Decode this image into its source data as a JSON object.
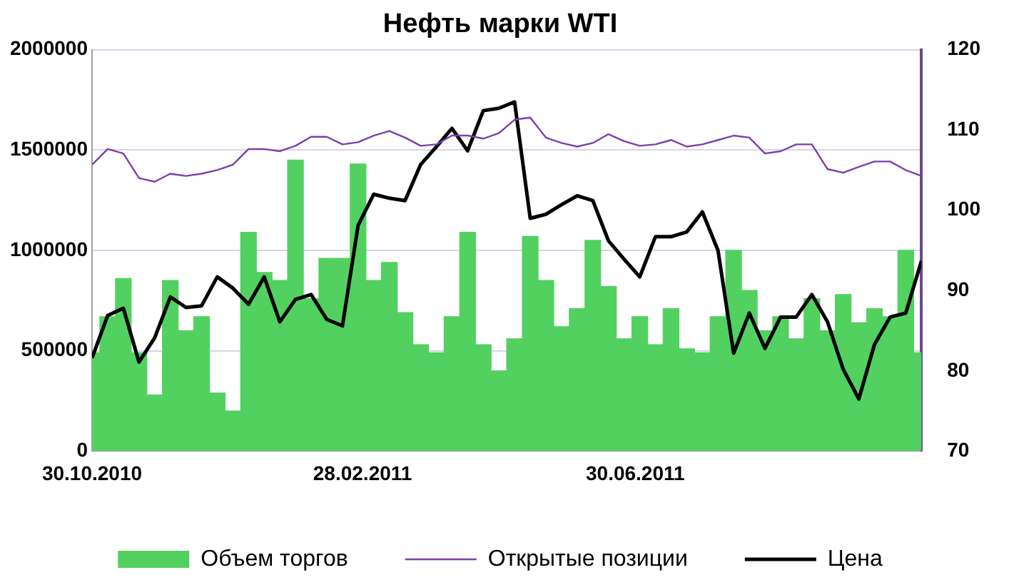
{
  "chart_data": {
    "type": "bar",
    "title": "Нефть марки WTI",
    "legend": "bottom",
    "grid": "y",
    "marker": "none",
    "x": [
      "2010-10-30",
      "2010-11-06",
      "2010-11-13",
      "2010-11-20",
      "2010-11-27",
      "2010-12-04",
      "2010-12-11",
      "2010-12-18",
      "2010-12-25",
      "2011-01-01",
      "2011-01-08",
      "2011-01-15",
      "2011-01-22",
      "2011-01-29",
      "2011-02-05",
      "2011-02-12",
      "2011-02-19",
      "2011-02-26",
      "2011-03-05",
      "2011-03-12",
      "2011-03-19",
      "2011-03-26",
      "2011-04-02",
      "2011-04-09",
      "2011-04-16",
      "2011-04-23",
      "2011-04-30",
      "2011-05-07",
      "2011-05-14",
      "2011-05-21",
      "2011-05-28",
      "2011-06-04",
      "2011-06-11",
      "2011-06-18",
      "2011-06-25",
      "2011-07-02",
      "2011-07-09",
      "2011-07-16",
      "2011-07-23",
      "2011-07-30",
      "2011-08-06",
      "2011-08-13",
      "2011-08-20",
      "2011-08-27",
      "2011-09-03",
      "2011-09-10",
      "2011-09-17",
      "2011-09-24",
      "2011-10-01",
      "2011-10-08",
      "2011-10-15",
      "2011-10-22",
      "2011-10-29",
      "2011-11-05"
    ],
    "xlim": [
      "2010-10-30",
      "2011-11-05"
    ],
    "xticks": [
      {
        "value": "2010-10-30",
        "label": "30.10.2010"
      },
      {
        "value": "2011-02-28",
        "label": "28.02.2011"
      },
      {
        "value": "2011-06-30",
        "label": "30.06.2011"
      }
    ],
    "ylim": [
      0,
      2000000
    ],
    "yticks": [
      0,
      500000,
      1000000,
      1500000,
      2000000
    ],
    "y2lim": [
      70,
      120
    ],
    "y2ticks": [
      70,
      80,
      90,
      100,
      110,
      120
    ],
    "series": [
      {
        "name": "Объем торгов",
        "color": "#52d160",
        "values": [
          490000,
          670000,
          860000,
          490000,
          280000,
          850000,
          600000,
          670000,
          290000,
          200000,
          1090000,
          890000,
          850000,
          1450000,
          760000,
          960000,
          960000,
          1430000,
          850000,
          940000,
          690000,
          530000,
          490000,
          670000,
          1090000,
          530000,
          400000,
          560000,
          1070000,
          850000,
          620000,
          710000,
          1050000,
          820000,
          560000,
          670000,
          530000,
          710000,
          510000,
          490000,
          670000,
          1000000,
          800000,
          600000,
          670000,
          560000,
          760000,
          600000,
          780000,
          640000,
          710000,
          670000,
          1000000,
          490000
        ]
      },
      {
        "name": "Открытые позиции",
        "type": "line",
        "color": "#7b3fb0",
        "values": [
          1427000,
          1505000,
          1483000,
          1360000,
          1342000,
          1382000,
          1371000,
          1382000,
          1400000,
          1427000,
          1505000,
          1505000,
          1494000,
          1521000,
          1566000,
          1566000,
          1528000,
          1539000,
          1572000,
          1595000,
          1562000,
          1521000,
          1528000,
          1572000,
          1572000,
          1557000,
          1584000,
          1651000,
          1662000,
          1562000,
          1535000,
          1517000,
          1535000,
          1579000,
          1544000,
          1521000,
          1528000,
          1550000,
          1517000,
          1528000,
          1550000,
          1572000,
          1562000,
          1483000,
          1494000,
          1528000,
          1528000,
          1405000,
          1387000,
          1416000,
          1443000,
          1443000,
          1400000,
          1371000
        ]
      },
      {
        "name": "Цена",
        "type": "line",
        "color": "#000000",
        "axis": "y2",
        "values": [
          81.6,
          86.9,
          87.8,
          81.1,
          84.1,
          89.2,
          87.9,
          88.1,
          91.7,
          90.3,
          88.3,
          91.7,
          86.1,
          88.9,
          89.5,
          86.4,
          85.6,
          98.1,
          102.0,
          101.5,
          101.2,
          105.7,
          107.9,
          110.2,
          107.4,
          112.4,
          112.7,
          113.5,
          99.0,
          99.5,
          100.7,
          101.8,
          101.2,
          96.2,
          93.9,
          91.7,
          96.7,
          96.7,
          97.3,
          99.8,
          95.0,
          82.2,
          87.2,
          82.8,
          86.7,
          86.7,
          89.5,
          86.1,
          80.2,
          76.5,
          83.3,
          86.7,
          87.2,
          93.7
        ]
      }
    ]
  }
}
